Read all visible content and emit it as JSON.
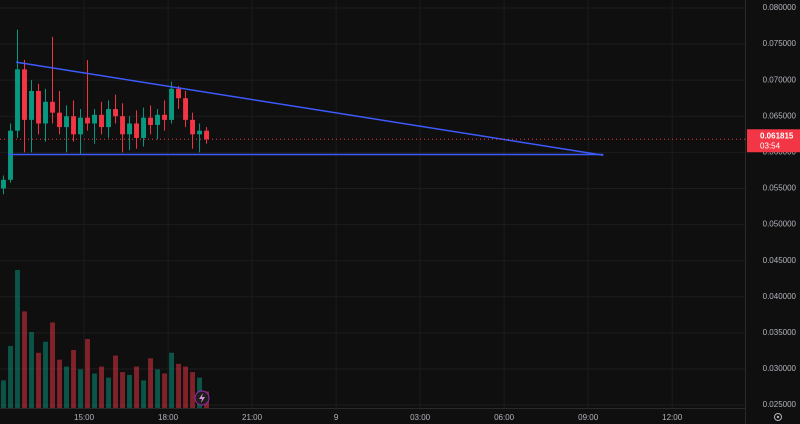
{
  "chart_data": {
    "type": "candlestick",
    "up_color": "#089981",
    "down_color": "#f23645",
    "x": [
      12,
      12.25,
      12.5,
      12.75,
      13,
      13.25,
      13.5,
      13.75,
      14,
      14.25,
      14.5,
      14.75,
      15,
      15.25,
      15.5,
      15.75,
      16,
      16.25,
      16.5,
      16.75,
      17,
      17.25,
      17.5,
      17.75,
      18,
      18.25,
      18.5,
      18.75,
      19,
      19.25
    ],
    "open": [
      0.055,
      0.0562,
      0.063,
      0.0715,
      0.0645,
      0.0685,
      0.064,
      0.067,
      0.0655,
      0.0635,
      0.065,
      0.0625,
      0.0648,
      0.064,
      0.0652,
      0.0635,
      0.066,
      0.065,
      0.0625,
      0.064,
      0.062,
      0.0648,
      0.0638,
      0.0652,
      0.0645,
      0.0688,
      0.0675,
      0.0645,
      0.0625,
      0.063
    ],
    "high": [
      0.0568,
      0.064,
      0.077,
      0.0728,
      0.07,
      0.0695,
      0.0688,
      0.076,
      0.0685,
      0.0665,
      0.0672,
      0.066,
      0.0728,
      0.066,
      0.067,
      0.0672,
      0.068,
      0.0668,
      0.065,
      0.0658,
      0.0662,
      0.0665,
      0.066,
      0.0672,
      0.0698,
      0.0692,
      0.0685,
      0.0655,
      0.064,
      0.0635
    ],
    "low": [
      0.0542,
      0.0558,
      0.062,
      0.06,
      0.06,
      0.0625,
      0.0615,
      0.064,
      0.0625,
      0.06,
      0.0615,
      0.0598,
      0.063,
      0.0612,
      0.0625,
      0.062,
      0.064,
      0.06,
      0.0603,
      0.0605,
      0.0608,
      0.0625,
      0.0618,
      0.063,
      0.064,
      0.066,
      0.0635,
      0.0605,
      0.06,
      0.0612
    ],
    "close": [
      0.0562,
      0.063,
      0.0715,
      0.0645,
      0.0685,
      0.064,
      0.067,
      0.0655,
      0.0635,
      0.065,
      0.0625,
      0.0648,
      0.064,
      0.0652,
      0.0635,
      0.066,
      0.065,
      0.0625,
      0.064,
      0.062,
      0.0648,
      0.0638,
      0.0652,
      0.0645,
      0.0688,
      0.0675,
      0.0645,
      0.0625,
      0.063,
      0.0618
    ],
    "volume": [
      20,
      45,
      100,
      70,
      55,
      40,
      48,
      62,
      35,
      30,
      42,
      28,
      50,
      25,
      30,
      22,
      38,
      26,
      24,
      30,
      20,
      36,
      28,
      25,
      40,
      32,
      30,
      26,
      22,
      12
    ],
    "volume_lim": [
      0,
      100
    ],
    "last_price": 0.061815,
    "countdown": "03:54",
    "trendline_color": "#3d5afe",
    "trendlines": [
      {
        "x": [
          12.57,
          33.54
        ],
        "y": [
          0.0725,
          0.0596
        ]
      },
      {
        "x": [
          12.29,
          33.54
        ],
        "y": [
          0.0597,
          0.0597
        ]
      }
    ],
    "xlim": [
      12,
      38.6
    ],
    "xticks": [
      {
        "value": 15,
        "label": "15:00"
      },
      {
        "value": 18,
        "label": "18:00"
      },
      {
        "value": 21,
        "label": "21:00"
      },
      {
        "value": 24,
        "label": "9"
      },
      {
        "value": 27,
        "label": "03:00"
      },
      {
        "value": 30,
        "label": "06:00"
      },
      {
        "value": 33,
        "label": "09:00"
      },
      {
        "value": 36,
        "label": "12:00"
      }
    ],
    "ylim": [
      0.0246,
      0.0811
    ],
    "yticks": [
      {
        "value": 0.025,
        "label": "0.025000"
      },
      {
        "value": 0.03,
        "label": "0.030000"
      },
      {
        "value": 0.035,
        "label": "0.035000"
      },
      {
        "value": 0.04,
        "label": "0.040000"
      },
      {
        "value": 0.045,
        "label": "0.045000"
      },
      {
        "value": 0.05,
        "label": "0.050000"
      },
      {
        "value": 0.055,
        "label": "0.055000"
      },
      {
        "value": 0.06,
        "label": "0.060000"
      },
      {
        "value": 0.065,
        "label": "0.065000"
      },
      {
        "value": 0.07,
        "label": "0.070000"
      },
      {
        "value": 0.075,
        "label": "0.075000"
      },
      {
        "value": 0.08,
        "label": "0.080000"
      }
    ],
    "grid": true
  }
}
